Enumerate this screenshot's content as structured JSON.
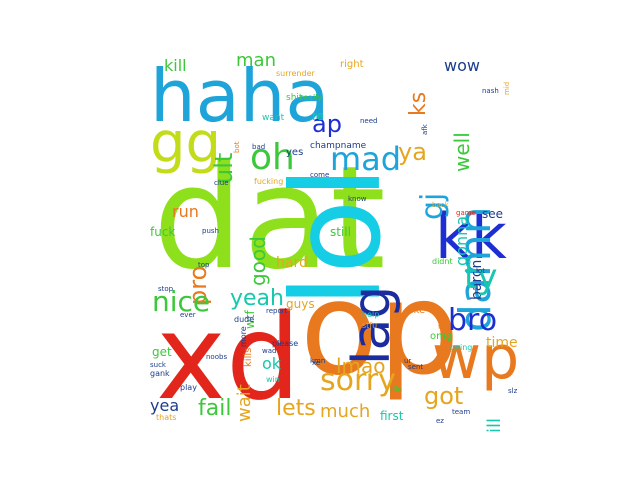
{
  "palette": {
    "lime": "#8fe01c",
    "red": "#e3261c",
    "orange": "#e8791e",
    "cyan": "#16cde6",
    "blue": "#1d2fd2",
    "azure": "#1ea4d8",
    "green": "#3cc83a",
    "yellowgreen": "#c2dc1a",
    "gold": "#e6a51e",
    "teal": "#17c7ae",
    "darkblue": "#1a2c9e",
    "navy": "#1c3c8c"
  },
  "words": {
    "dat": "dat",
    "xd": "xd",
    "op": "op",
    "lol": "lol",
    "haha": "haha",
    "kk": "kk",
    "wp": "wp",
    "gg": "gg",
    "lag": "lag",
    "damn": "damn",
    "sorry": "sorry",
    "mad": "mad",
    "oh": "oh",
    "nice": "nice",
    "bro": "bro",
    "ty": "ty",
    "yeah": "yeah",
    "fail": "fail",
    "lets": "lets",
    "gj": "gj",
    "pro": "pro",
    "good": "good",
    "lmao": "lmao",
    "got": "got",
    "ult": "ult",
    "ks": "ks",
    "ap": "ap",
    "ya": "ya",
    "kill": "kill",
    "man": "man",
    "wow": "wow",
    "well": "well",
    "gonna": "gonna",
    "run": "run",
    "much": "much",
    "ill": "ill",
    "wait": "wait",
    "ok": "ok",
    "hard": "hard",
    "time": "time",
    "yea": "yea",
    "baron": "baron",
    "still": "still",
    "guys": "guys",
    "wtf": "wtf",
    "fuck": "fuck",
    "right": "right",
    "re": "re",
    "yes": "yes",
    "like": "like",
    "omg": "omg",
    "first": "first",
    "get": "get",
    "see": "see",
    "want": "want",
    "shit": "shit",
    "surrender": "surrender",
    "really": "really",
    "champname": "champname",
    "fucking": "fucking",
    "kills": "kills",
    "die": "die",
    "didnt": "didnt",
    "going": "going",
    "help": "help",
    "stfu": "stfu",
    "please": "please",
    "dude": "dude",
    "win": "win",
    "play": "play",
    "thats": "thats",
    "gank": "gank",
    "suck": "suck",
    "noobs": "noobs",
    "team": "team",
    "lot": "lot",
    "back": "back",
    "top": "top",
    "ever": "ever",
    "bad": "bad",
    "clue": "clue",
    "push": "push",
    "stop": "stop",
    "mid": "mid",
    "nash": "nash",
    "afk": "afk",
    "ez": "ez",
    "sent": "sent",
    "ur": "ur",
    "fed": "fed",
    "slz": "slz",
    "need": "need",
    "come": "come",
    "know": "know",
    "xe": "xe",
    "game": "game",
    "more": "more",
    "report": "report",
    "kmn": "kmn",
    "bot": "bot",
    "wad": "wad"
  }
}
